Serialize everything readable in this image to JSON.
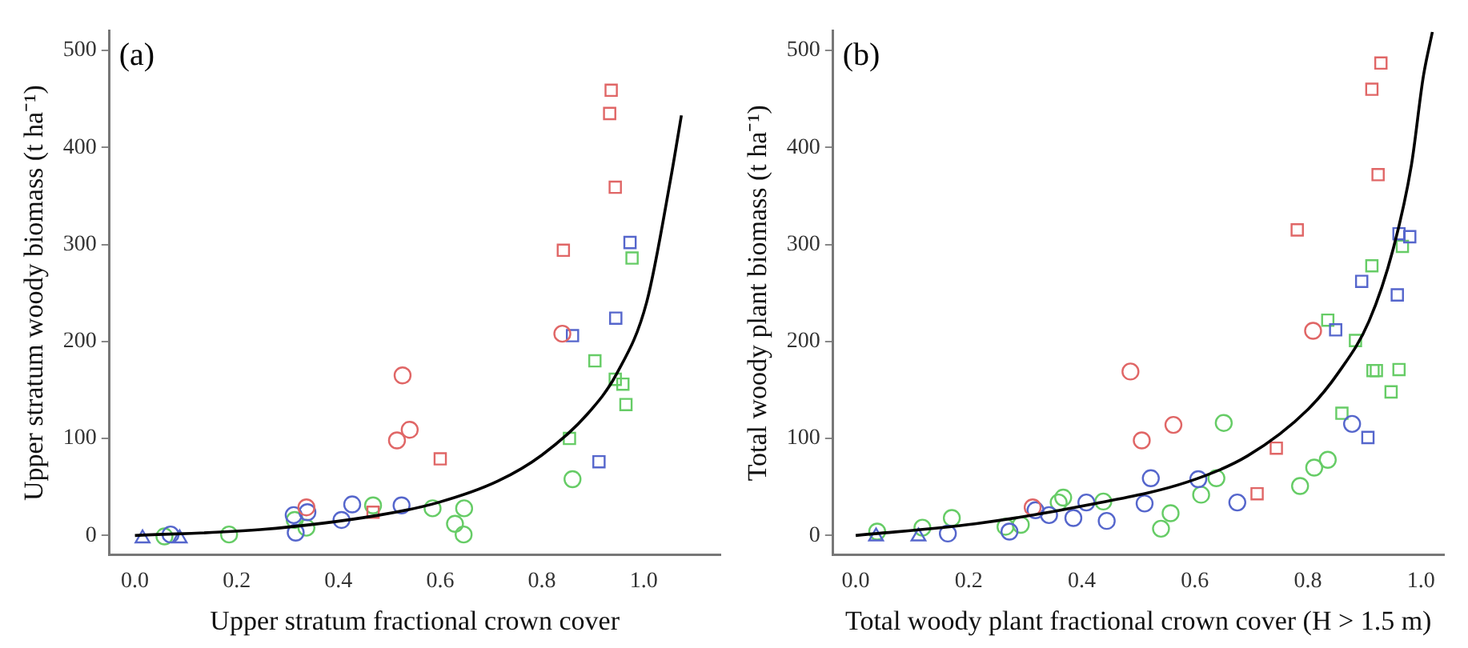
{
  "chart_data": [
    {
      "type": "scatter",
      "ylabel": "Upper stratum woody biomass (t ha⁻¹)",
      "xlabel": "Upper stratum fractional crown cover",
      "annotations": [
        "(a)"
      ],
      "xlim": [
        -0.05,
        1.15
      ],
      "ylim": [
        -20,
        520
      ],
      "xticks": [
        {
          "value": 0,
          "label": "0.0"
        },
        {
          "value": 0.2,
          "label": "0.2"
        },
        {
          "value": 0.4,
          "label": "0.4"
        },
        {
          "value": 0.6,
          "label": "0.6"
        },
        {
          "value": 0.8,
          "label": "0.8"
        },
        {
          "value": 1,
          "label": "1.0"
        }
      ],
      "yticks": [
        0,
        100,
        200,
        300,
        400,
        500
      ],
      "grid": false,
      "legend": false,
      "series": [
        {
          "color": "#e06666",
          "marker": "square",
          "x": [
            0.936,
            0.933,
            0.944,
            0.842,
            0.6,
            0.468
          ],
          "values": [
            459,
            435,
            359,
            294,
            79,
            24
          ]
        },
        {
          "color": "#e06666",
          "marker": "circle",
          "x": [
            0.84,
            0.526,
            0.54,
            0.515,
            0.337
          ],
          "values": [
            208,
            165,
            109,
            98,
            29
          ]
        },
        {
          "color": "#5566cc",
          "marker": "square",
          "x": [
            0.973,
            0.945,
            0.86,
            0.912
          ],
          "values": [
            302,
            224,
            206,
            76
          ]
        },
        {
          "color": "#5566cc",
          "marker": "circle",
          "x": [
            0.427,
            0.524,
            0.312,
            0.339,
            0.406,
            0.316,
            0.07
          ],
          "values": [
            32,
            31,
            21,
            24,
            16,
            3,
            1
          ]
        },
        {
          "color": "#5566cc",
          "marker": "triangle",
          "x": [
            0.015,
            0.088
          ],
          "values": [
            -3,
            -3
          ]
        },
        {
          "color": "#66cc66",
          "marker": "square",
          "x": [
            0.977,
            0.904,
            0.944,
            0.959,
            0.965,
            0.854
          ],
          "values": [
            286,
            180,
            161,
            156,
            135,
            100
          ]
        },
        {
          "color": "#66cc66",
          "marker": "circle",
          "x": [
            0.86,
            0.468,
            0.585,
            0.647,
            0.629,
            0.646,
            0.337,
            0.314,
            0.185,
            0.058
          ],
          "values": [
            58,
            31,
            28,
            28,
            12,
            1,
            8,
            16,
            1,
            -1
          ]
        },
        {
          "type": "line",
          "color": "#000000",
          "marker": "none",
          "line_style": "solid",
          "x": [
            0,
            0.246,
            0.48,
            0.596,
            0.713,
            0.8,
            0.889,
            0.947,
            1.006,
            1.053,
            1.074
          ],
          "values": [
            0,
            6,
            21,
            34,
            56,
            83,
            125,
            167,
            241,
            368,
            433
          ]
        }
      ]
    },
    {
      "type": "scatter",
      "ylabel": "Total woody plant biomass (t ha⁻¹)",
      "xlabel": "Total woody plant fractional crown cover (H > 1.5 m)",
      "annotations": [
        "(b)"
      ],
      "xlim": [
        -0.04,
        1.04
      ],
      "ylim": [
        -20,
        520
      ],
      "xticks": [
        {
          "value": 0,
          "label": "0.0"
        },
        {
          "value": 0.2,
          "label": "0.2"
        },
        {
          "value": 0.4,
          "label": "0.4"
        },
        {
          "value": 0.6,
          "label": "0.6"
        },
        {
          "value": 0.8,
          "label": "0.8"
        },
        {
          "value": 1,
          "label": "1.0"
        }
      ],
      "yticks": [
        0,
        100,
        200,
        300,
        400,
        500
      ],
      "grid": false,
      "legend": false,
      "series": [
        {
          "color": "#e06666",
          "marker": "square",
          "x": [
            0.929,
            0.913,
            0.924,
            0.781,
            0.744,
            0.71
          ],
          "values": [
            487,
            460,
            372,
            315,
            90,
            43
          ]
        },
        {
          "color": "#e06666",
          "marker": "circle",
          "x": [
            0.809,
            0.486,
            0.562,
            0.506,
            0.313
          ],
          "values": [
            211,
            169,
            114,
            98,
            29
          ]
        },
        {
          "color": "#5566cc",
          "marker": "square",
          "x": [
            0.961,
            0.98,
            0.958,
            0.895,
            0.849,
            0.906
          ],
          "values": [
            311,
            308,
            248,
            262,
            212,
            101
          ]
        },
        {
          "color": "#5566cc",
          "marker": "circle",
          "x": [
            0.878,
            0.522,
            0.606,
            0.675,
            0.511,
            0.408,
            0.318,
            0.342,
            0.385,
            0.444,
            0.272,
            0.163
          ],
          "values": [
            115,
            59,
            58,
            34,
            33,
            34,
            26,
            21,
            18,
            15,
            4,
            2
          ]
        },
        {
          "color": "#5566cc",
          "marker": "triangle",
          "x": [
            0.036,
            0.111
          ],
          "values": [
            -1,
            -1
          ]
        },
        {
          "color": "#66cc66",
          "marker": "square",
          "x": [
            0.967,
            0.913,
            0.835,
            0.884,
            0.915,
            0.921,
            0.961,
            0.947,
            0.86
          ],
          "values": [
            298,
            278,
            222,
            201,
            170,
            170,
            171,
            148,
            126
          ]
        },
        {
          "color": "#66cc66",
          "marker": "circle",
          "x": [
            0.651,
            0.835,
            0.811,
            0.786,
            0.638,
            0.611,
            0.557,
            0.54,
            0.438,
            0.367,
            0.359,
            0.292,
            0.265,
            0.17,
            0.118,
            0.038
          ],
          "values": [
            116,
            78,
            70,
            51,
            59,
            42,
            23,
            7,
            35,
            39,
            34,
            11,
            9,
            18,
            8,
            4
          ]
        },
        {
          "type": "line",
          "color": "#000000",
          "marker": "none",
          "line_style": "solid",
          "x": [
            0,
            0.211,
            0.425,
            0.586,
            0.693,
            0.8,
            0.854,
            0.908,
            0.951,
            0.983,
            1.004,
            1.02
          ],
          "values": [
            0,
            12,
            33,
            55,
            82,
            130,
            168,
            221,
            296,
            382,
            473,
            519
          ]
        }
      ]
    }
  ]
}
